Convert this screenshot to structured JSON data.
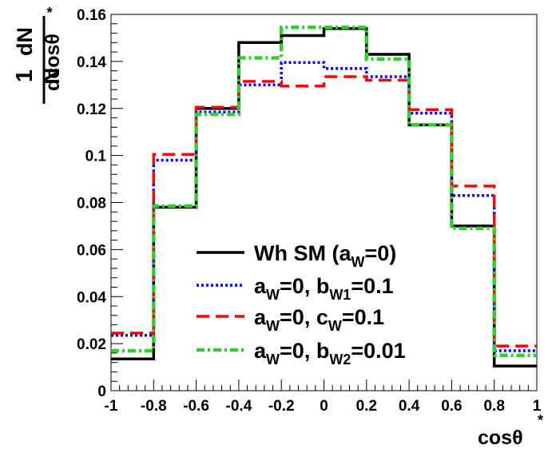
{
  "chart_data": {
    "type": "step-histogram",
    "title": "",
    "xlabel": "cosθ*",
    "ylabel": "1/N dN/dcosθ*",
    "xlim": [
      -1,
      1
    ],
    "ylim": [
      0,
      0.16
    ],
    "x_ticks": [
      -1,
      -0.8,
      -0.6,
      -0.4,
      -0.2,
      0,
      0.2,
      0.4,
      0.6,
      0.8,
      1
    ],
    "x_tick_labels": [
      "-1",
      "-0.8",
      "-0.6",
      "-0.4",
      "-0.2",
      "0",
      "0.2",
      "0.4",
      "0.6",
      "0.8",
      "1"
    ],
    "y_ticks": [
      0,
      0.02,
      0.04,
      0.06,
      0.08,
      0.1,
      0.12,
      0.14,
      0.16
    ],
    "y_tick_labels": [
      "0",
      "0.02",
      "0.04",
      "0.06",
      "0.08",
      "0.1",
      "0.12",
      "0.14",
      "0.16"
    ],
    "bin_edges": [
      -1,
      -0.8,
      -0.6,
      -0.4,
      -0.2,
      0,
      0.2,
      0.4,
      0.6,
      0.8,
      1
    ],
    "series": [
      {
        "name": "Wh SM (a_W=0)",
        "color": "#000000",
        "style": "solid",
        "values": [
          0.0135,
          0.078,
          0.12,
          0.148,
          0.151,
          0.154,
          0.143,
          0.113,
          0.07,
          0.0105
        ]
      },
      {
        "name": "a_W=0, b_W1=0.1",
        "color": "#0000ff",
        "style": "dotted",
        "values": [
          0.0235,
          0.098,
          0.1185,
          0.13,
          0.1395,
          0.137,
          0.1335,
          0.118,
          0.083,
          0.017
        ]
      },
      {
        "name": "a_W=0, c_W=0.1",
        "color": "#ff0000",
        "style": "dashed",
        "values": [
          0.0245,
          0.1005,
          0.1205,
          0.1315,
          0.1295,
          0.1335,
          0.132,
          0.1195,
          0.087,
          0.019
        ]
      },
      {
        "name": "a_W=0, b_W2=0.01",
        "color": "#33cc33",
        "style": "dashdot",
        "values": [
          0.017,
          0.0785,
          0.1175,
          0.1415,
          0.1545,
          0.1545,
          0.141,
          0.113,
          0.069,
          0.015
        ]
      }
    ],
    "legend": {
      "placement": "bottom-center",
      "entries": [
        {
          "prefix": "Wh SM (a",
          "sub": "W",
          "suffix": "=0)"
        },
        {
          "parts": [
            [
              "a",
              ""
            ],
            [
              "W",
              "sub"
            ],
            [
              "=0, b",
              ""
            ],
            [
              "W1",
              "sub"
            ],
            [
              "=0.1",
              ""
            ]
          ]
        },
        {
          "parts": [
            [
              "a",
              ""
            ],
            [
              "W",
              "sub"
            ],
            [
              "=0, c",
              ""
            ],
            [
              "W",
              "sub"
            ],
            [
              "=0.1",
              ""
            ]
          ]
        },
        {
          "parts": [
            [
              "a",
              ""
            ],
            [
              "W",
              "sub"
            ],
            [
              "=0, b",
              ""
            ],
            [
              "W2",
              "sub"
            ],
            [
              "=0.01",
              ""
            ]
          ]
        }
      ]
    }
  }
}
